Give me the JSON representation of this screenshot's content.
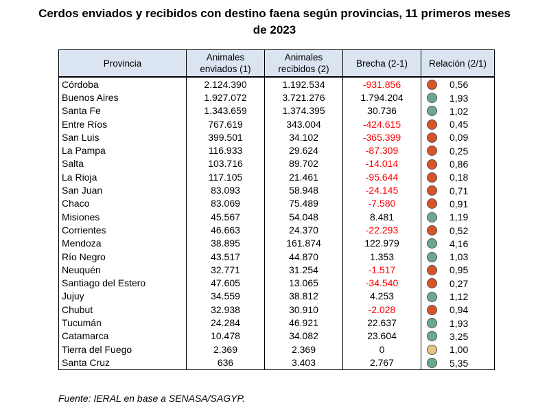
{
  "title_line1": "Cerdos enviados y recibidos con destino faena según provincias, 11 primeros meses",
  "title_line2": "de 2023",
  "headers": {
    "provincia": "Provincia",
    "enviados_1": "Animales",
    "enviados_2": "enviados (1)",
    "recibidos_1": "Animales",
    "recibidos_2": "recibidos (2)",
    "brecha": "Brecha (2-1)",
    "relacion": "Relación (2/1)"
  },
  "colors": {
    "negative": "#ff0000",
    "red_dot": "#d9532a",
    "green_dot": "#6aaa8c",
    "yellow_dot": "#e8c184",
    "header_bg": "#dbe5f1"
  },
  "rows": [
    {
      "provincia": "Córdoba",
      "enviados": "2.124.390",
      "recibidos": "1.192.534",
      "brecha": "-931.856",
      "relacion": "0,56",
      "indicator": "red"
    },
    {
      "provincia": "Buenos Aires",
      "enviados": "1.927.072",
      "recibidos": "3.721.276",
      "brecha": "1.794.204",
      "relacion": "1,93",
      "indicator": "green"
    },
    {
      "provincia": "Santa Fe",
      "enviados": "1.343.659",
      "recibidos": "1.374.395",
      "brecha": "30.736",
      "relacion": "1,02",
      "indicator": "green"
    },
    {
      "provincia": "Entre Ríos",
      "enviados": "767.619",
      "recibidos": "343.004",
      "brecha": "-424.615",
      "relacion": "0,45",
      "indicator": "red"
    },
    {
      "provincia": "San Luis",
      "enviados": "399.501",
      "recibidos": "34.102",
      "brecha": "-365.399",
      "relacion": "0,09",
      "indicator": "red"
    },
    {
      "provincia": "La Pampa",
      "enviados": "116.933",
      "recibidos": "29.624",
      "brecha": "-87.309",
      "relacion": "0,25",
      "indicator": "red"
    },
    {
      "provincia": "Salta",
      "enviados": "103.716",
      "recibidos": "89.702",
      "brecha": "-14.014",
      "relacion": "0,86",
      "indicator": "red"
    },
    {
      "provincia": "La Rioja",
      "enviados": "117.105",
      "recibidos": "21.461",
      "brecha": "-95.644",
      "relacion": "0,18",
      "indicator": "red"
    },
    {
      "provincia": "San Juan",
      "enviados": "83.093",
      "recibidos": "58.948",
      "brecha": "-24.145",
      "relacion": "0,71",
      "indicator": "red"
    },
    {
      "provincia": "Chaco",
      "enviados": "83.069",
      "recibidos": "75.489",
      "brecha": "-7.580",
      "relacion": "0,91",
      "indicator": "red"
    },
    {
      "provincia": "Misiones",
      "enviados": "45.567",
      "recibidos": "54.048",
      "brecha": "8.481",
      "relacion": "1,19",
      "indicator": "green"
    },
    {
      "provincia": "Corrientes",
      "enviados": "46.663",
      "recibidos": "24.370",
      "brecha": "-22.293",
      "relacion": "0,52",
      "indicator": "red"
    },
    {
      "provincia": "Mendoza",
      "enviados": "38.895",
      "recibidos": "161.874",
      "brecha": "122.979",
      "relacion": "4,16",
      "indicator": "green"
    },
    {
      "provincia": "Río Negro",
      "enviados": "43.517",
      "recibidos": "44.870",
      "brecha": "1.353",
      "relacion": "1,03",
      "indicator": "green"
    },
    {
      "provincia": "Neuquén",
      "enviados": "32.771",
      "recibidos": "31.254",
      "brecha": "-1.517",
      "relacion": "0,95",
      "indicator": "red"
    },
    {
      "provincia": "Santiago del Estero",
      "enviados": "47.605",
      "recibidos": "13.065",
      "brecha": "-34.540",
      "relacion": "0,27",
      "indicator": "red"
    },
    {
      "provincia": "Jujuy",
      "enviados": "34.559",
      "recibidos": "38.812",
      "brecha": "4.253",
      "relacion": "1,12",
      "indicator": "green"
    },
    {
      "provincia": "Chubut",
      "enviados": "32.938",
      "recibidos": "30.910",
      "brecha": "-2.028",
      "relacion": "0,94",
      "indicator": "red"
    },
    {
      "provincia": "Tucumán",
      "enviados": "24.284",
      "recibidos": "46.921",
      "brecha": "22.637",
      "relacion": "1,93",
      "indicator": "green"
    },
    {
      "provincia": "Catamarca",
      "enviados": "10.478",
      "recibidos": "34.082",
      "brecha": "23.604",
      "relacion": "3,25",
      "indicator": "green"
    },
    {
      "provincia": "Tierra del Fuego",
      "enviados": "2.369",
      "recibidos": "2.369",
      "brecha": "0",
      "relacion": "1,00",
      "indicator": "yellow"
    },
    {
      "provincia": "Santa Cruz",
      "enviados": "636",
      "recibidos": "3.403",
      "brecha": "2.767",
      "relacion": "5,35",
      "indicator": "green"
    }
  ],
  "source": "Fuente: IERAL en base a SENASA/SAGYP."
}
